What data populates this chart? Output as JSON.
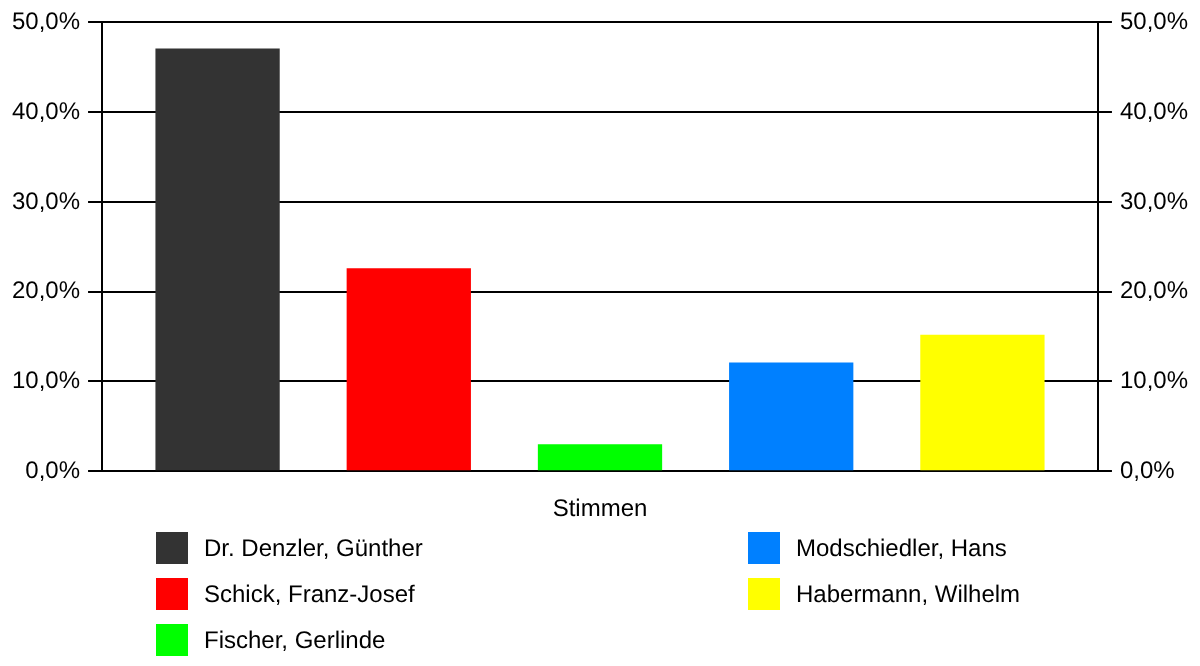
{
  "chart_data": {
    "type": "bar",
    "categories": [
      "Stimmen"
    ],
    "series": [
      {
        "name": "Dr. Denzler, Günther",
        "color": "#333333",
        "values": [
          47.1
        ]
      },
      {
        "name": "Schick, Franz-Josef",
        "color": "#ff0000",
        "values": [
          22.6
        ]
      },
      {
        "name": "Fischer, Gerlinde",
        "color": "#00ff00",
        "values": [
          3.0
        ]
      },
      {
        "name": "Modschiedler, Hans",
        "color": "#0080ff",
        "values": [
          12.1
        ]
      },
      {
        "name": "Habermann, Wilhelm",
        "color": "#ffff00",
        "values": [
          15.2
        ]
      }
    ],
    "ylim": [
      0,
      50
    ],
    "yticks": [
      {
        "value": 0,
        "label": "0,0%"
      },
      {
        "value": 10,
        "label": "10,0%"
      },
      {
        "value": 20,
        "label": "20,0%"
      },
      {
        "value": 30,
        "label": "30,0%"
      },
      {
        "value": 40,
        "label": "40,0%"
      },
      {
        "value": 50,
        "label": "50,0%"
      }
    ],
    "grid": "y",
    "legend": "bottom"
  }
}
